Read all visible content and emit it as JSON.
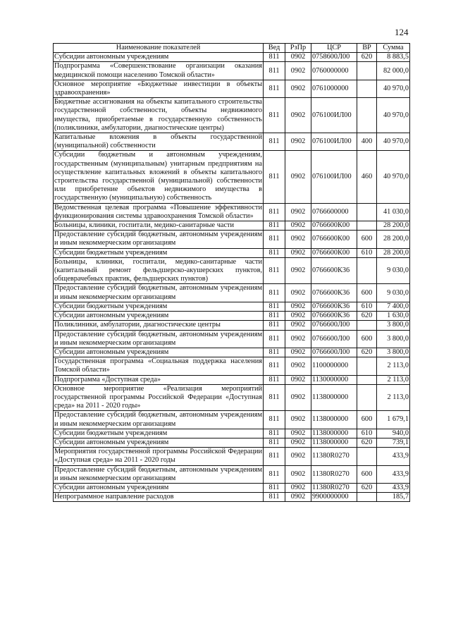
{
  "page_number": "124",
  "table": {
    "headers": [
      "Наименование показателей",
      "Вед",
      "РзПр",
      "ЦСР",
      "ВР",
      "Сумма"
    ],
    "rows": [
      [
        "Субсидии автономным учреждениям",
        "811",
        "0902",
        "0758600Л00",
        "620",
        "8 883,5"
      ],
      [
        "Подпрограмма «Совершенствование организации оказания медицинской помощи населению Томской области»",
        "811",
        "0902",
        "0760000000",
        "",
        "82 000,0"
      ],
      [
        "Основное мероприятие «Бюджетные инвестиции в объекты здравоохранения»",
        "811",
        "0902",
        "0761000000",
        "",
        "40 970,0"
      ],
      [
        "Бюджетные ассигнования на объекты капитального строительства государственной собственности, объекты недвижимого имущества, приобретаемые в государственную собственность (поликлиники, амбулатории, диагностические центры)",
        "811",
        "0902",
        "076100ИЛ00",
        "",
        "40 970,0"
      ],
      [
        "Капитальные вложения в объекты государственной (муниципальной) собственности",
        "811",
        "0902",
        "076100ИЛ00",
        "400",
        "40 970,0"
      ],
      [
        "Субсидии бюджетным и автономным учреждениям, государственным (муниципальным) унитарным предприятиям на осуществление капитальных вложений в объекты капитального строительства государственной (муниципальной) собственности или приобретение объектов недвижимого имущества в государственную (муниципальную) собственность",
        "811",
        "0902",
        "076100ИЛ00",
        "460",
        "40 970,0"
      ],
      [
        "Ведомственная целевая программа «Повышение эффективности функционирования системы здравоохранения Томской области»",
        "811",
        "0902",
        "0766600000",
        "",
        "41 030,0"
      ],
      [
        "Больницы, клиники, госпитали, медико-санитарные части",
        "811",
        "0902",
        "0766600К00",
        "",
        "28 200,0"
      ],
      [
        "Предоставление субсидий бюджетным, автономным учреждениям и иным некоммерческим организациям",
        "811",
        "0902",
        "0766600К00",
        "600",
        "28 200,0"
      ],
      [
        "Субсидии бюджетным учреждениям",
        "811",
        "0902",
        "0766600К00",
        "610",
        "28 200,0"
      ],
      [
        "Больницы, клиники, госпитали, медико-санитарные части (капитальный ремонт фельдшерско-акушерских пунктов, общеврачебных практик, фельдшерских пунктов)",
        "811",
        "0902",
        "0766600К36",
        "",
        "9 030,0"
      ],
      [
        "Предоставление субсидий бюджетным, автономным учреждениям и иным некоммерческим организациям",
        "811",
        "0902",
        "0766600К36",
        "600",
        "9 030,0"
      ],
      [
        "Субсидии бюджетным учреждениям",
        "811",
        "0902",
        "0766600К36",
        "610",
        "7 400,0"
      ],
      [
        "Субсидии автономным учреждениям",
        "811",
        "0902",
        "0766600К36",
        "620",
        "1 630,0"
      ],
      [
        "Поликлиники, амбулатории, диагностические центры",
        "811",
        "0902",
        "0766600Л00",
        "",
        "3 800,0"
      ],
      [
        "Предоставление субсидий бюджетным, автономным учреждениям и иным некоммерческим организациям",
        "811",
        "0902",
        "0766600Л00",
        "600",
        "3 800,0"
      ],
      [
        "Субсидии автономным учреждениям",
        "811",
        "0902",
        "0766600Л00",
        "620",
        "3 800,0"
      ],
      [
        "Государственная программа «Социальная поддержка населения Томской области»",
        "811",
        "0902",
        "1100000000",
        "",
        "2 113,0"
      ],
      [
        "Подпрограмма «Доступная среда»",
        "811",
        "0902",
        "1130000000",
        "",
        "2 113,0"
      ],
      [
        "Основное мероприятие «Реализация мероприятий государственной программы Российской Федерации «Доступная среда» на 2011 - 2020 годы»",
        "811",
        "0902",
        "1138000000",
        "",
        "2 113,0"
      ],
      [
        "Предоставление субсидий бюджетным, автономным учреждениям и иным некоммерческим организациям",
        "811",
        "0902",
        "1138000000",
        "600",
        "1 679,1"
      ],
      [
        "Субсидии бюджетным учреждениям",
        "811",
        "0902",
        "1138000000",
        "610",
        "940,0"
      ],
      [
        "Субсидии автономным учреждениям",
        "811",
        "0902",
        "1138000000",
        "620",
        "739,1"
      ],
      [
        "Мероприятия государственной программы Российской Федерации «Доступная среда» на 2011 - 2020 годы",
        "811",
        "0902",
        "11380R0270",
        "",
        "433,9"
      ],
      [
        "Предоставление субсидий бюджетным, автономным учреждениям и иным некоммерческим организациям",
        "811",
        "0902",
        "11380R0270",
        "600",
        "433,9"
      ],
      [
        "Субсидии автономным учреждениям",
        "811",
        "0902",
        "11380R0270",
        "620",
        "433,9"
      ],
      [
        "Непрограммное направление расходов",
        "811",
        "0902",
        "9900000000",
        "",
        "185,7"
      ]
    ]
  }
}
